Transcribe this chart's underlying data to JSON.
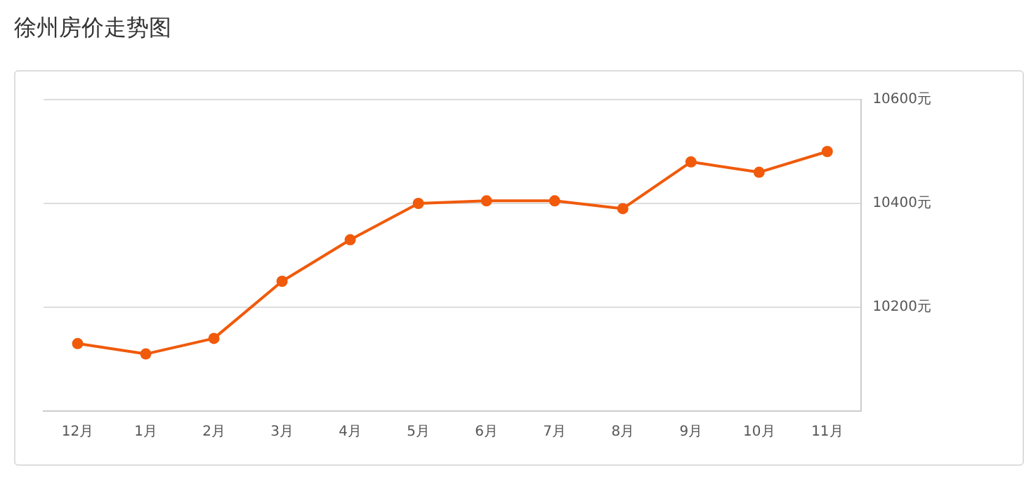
{
  "chart_data": {
    "type": "line",
    "title": "徐州房价走势图",
    "categories": [
      "12月",
      "1月",
      "2月",
      "3月",
      "4月",
      "5月",
      "6月",
      "7月",
      "8月",
      "9月",
      "10月",
      "11月"
    ],
    "series": [
      {
        "color": "#f05a0a",
        "values": [
          10130,
          10110,
          10140,
          10250,
          10330,
          10400,
          10405,
          10405,
          10390,
          10480,
          10460,
          10500
        ]
      }
    ],
    "ylim": [
      10000,
      10600
    ],
    "yticks": [
      {
        "value": 10000,
        "label": null
      },
      {
        "value": 10200,
        "label": "10200元"
      },
      {
        "value": 10400,
        "label": "10400元"
      },
      {
        "value": 10600,
        "label": "10600元"
      }
    ],
    "grid": "y",
    "legend": false,
    "marker": "circle",
    "line_style": "solid"
  }
}
